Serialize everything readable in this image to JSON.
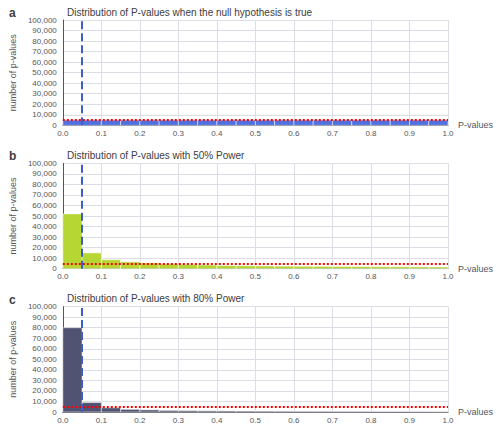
{
  "chart_data": [
    {
      "type": "histogram",
      "title": "Distribution of P-values when the null hypothesis is true",
      "annotations": [
        "a"
      ],
      "xlabel": "P-values",
      "ylabel": "number of p-values",
      "bins": [
        0,
        0.05,
        0.1,
        0.15,
        0.2,
        0.25,
        0.3,
        0.35,
        0.4,
        0.45,
        0.5,
        0.55,
        0.6,
        0.65,
        0.7,
        0.75,
        0.8,
        0.85,
        0.9,
        0.95,
        1
      ],
      "values": [
        5000,
        5000,
        5000,
        5000,
        5000,
        5000,
        5000,
        5000,
        5000,
        5000,
        5000,
        5000,
        5000,
        5000,
        5000,
        5000,
        5000,
        5000,
        5000,
        5000
      ],
      "xlim": [
        0,
        1
      ],
      "ylim": [
        0,
        100000
      ],
      "xticks": [
        {
          "value": 0,
          "label": "0.0"
        },
        0.1,
        0.2,
        0.3,
        0.4,
        0.5,
        0.6,
        0.7,
        0.8,
        0.9,
        {
          "value": 1,
          "label": "1.0"
        }
      ],
      "yticks": [
        0,
        {
          "value": 10000,
          "label": "10,000"
        },
        {
          "value": 20000,
          "label": "20,000"
        },
        {
          "value": 30000,
          "label": "30,000"
        },
        {
          "value": 40000,
          "label": "40,000"
        },
        {
          "value": 50000,
          "label": "50,000"
        },
        {
          "value": 60000,
          "label": "60,000"
        },
        {
          "value": 70000,
          "label": "70,000"
        },
        {
          "value": 80000,
          "label": "80,000"
        },
        {
          "value": 90000,
          "label": "90,000"
        },
        {
          "value": 100000,
          "label": "100,000"
        }
      ],
      "grid": true,
      "hlines": [
        {
          "value": 5000,
          "color": "red",
          "line_style": "dotted"
        }
      ],
      "vlines": [
        {
          "value": 0.05,
          "color": "#3A5FCD",
          "line_style": "dashed"
        }
      ]
    },
    {
      "type": "histogram",
      "title": "Distribution of P-values with 50% Power",
      "annotations": [
        "b"
      ],
      "xlabel": "P-values",
      "ylabel": "number of p-values",
      "bins": [
        0,
        0.05,
        0.1,
        0.15,
        0.2,
        0.25,
        0.3,
        0.35,
        0.4,
        0.45,
        0.5,
        0.55,
        0.6,
        0.65,
        0.7,
        0.75,
        0.8,
        0.85,
        0.9,
        0.95,
        1
      ],
      "values": [
        52000,
        15000,
        8500,
        6500,
        5500,
        4500,
        4000,
        3500,
        3000,
        2800,
        2600,
        2400,
        2300,
        2200,
        2100,
        2000,
        1900,
        1800,
        1700,
        1600
      ],
      "xlim": [
        0,
        1
      ],
      "ylim": [
        0,
        100000
      ],
      "xticks": [
        {
          "value": 0,
          "label": "0.0"
        },
        0.1,
        0.2,
        0.3,
        0.4,
        0.5,
        0.6,
        0.7,
        0.8,
        0.9,
        {
          "value": 1,
          "label": "1.0"
        }
      ],
      "yticks": [
        0,
        {
          "value": 10000,
          "label": "10,000"
        },
        {
          "value": 20000,
          "label": "20,000"
        },
        {
          "value": 30000,
          "label": "30,000"
        },
        {
          "value": 40000,
          "label": "40,000"
        },
        {
          "value": 50000,
          "label": "50,000"
        },
        {
          "value": 60000,
          "label": "60,000"
        },
        {
          "value": 70000,
          "label": "70,000"
        },
        {
          "value": 80000,
          "label": "80,000"
        },
        {
          "value": 90000,
          "label": "90,000"
        },
        {
          "value": 100000,
          "label": "100,000"
        }
      ],
      "grid": true,
      "hlines": [
        {
          "value": 5000,
          "color": "red",
          "line_style": "dotted"
        }
      ],
      "vlines": [
        {
          "value": 0.05,
          "color": "#3A5FCD",
          "line_style": "dashed"
        }
      ]
    },
    {
      "type": "histogram",
      "title": "Distribution of P-values with 80% Power",
      "annotations": [
        "c"
      ],
      "xlabel": "P-values",
      "ylabel": "number of p-values",
      "bins": [
        0,
        0.05,
        0.1,
        0.15,
        0.2,
        0.25,
        0.3,
        0.35,
        0.4,
        0.45,
        0.5,
        0.55,
        0.6,
        0.65,
        0.7,
        0.75,
        0.8,
        0.85,
        0.9,
        0.95,
        1
      ],
      "values": [
        80000,
        9000,
        4000,
        2500,
        2000,
        1500,
        1300,
        1100,
        1000,
        900,
        800,
        750,
        700,
        650,
        600,
        550,
        500,
        450,
        400,
        350
      ],
      "xlim": [
        0,
        1
      ],
      "ylim": [
        0,
        100000
      ],
      "xticks": [
        {
          "value": 0,
          "label": "0.0"
        },
        0.1,
        0.2,
        0.3,
        0.4,
        0.5,
        0.6,
        0.7,
        0.8,
        0.9,
        {
          "value": 1,
          "label": "1.0"
        }
      ],
      "yticks": [
        0,
        {
          "value": 10000,
          "label": "10,000"
        },
        {
          "value": 20000,
          "label": "20,000"
        },
        {
          "value": 30000,
          "label": "30,000"
        },
        {
          "value": 40000,
          "label": "40,000"
        },
        {
          "value": 50000,
          "label": "50,000"
        },
        {
          "value": 60000,
          "label": "60,000"
        },
        {
          "value": 70000,
          "label": "70,000"
        },
        {
          "value": 80000,
          "label": "80,000"
        },
        {
          "value": 90000,
          "label": "90,000"
        },
        {
          "value": 100000,
          "label": "100,000"
        }
      ],
      "grid": true,
      "hlines": [
        {
          "value": 5000,
          "color": "red",
          "line_style": "dotted"
        }
      ],
      "vlines": [
        {
          "value": 0.05,
          "color": "#3A5FCD",
          "line_style": "dashed"
        }
      ]
    }
  ]
}
